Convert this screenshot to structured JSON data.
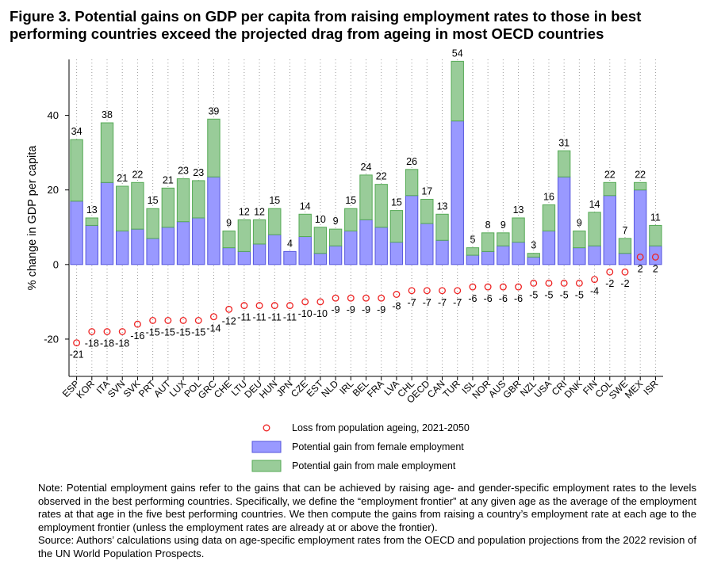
{
  "title": "Figure 3. Potential gains on GDP per capita from raising employment rates to those in best performing countries exceed the projected drag from ageing in most OECD countries",
  "note": "Note: Potential employment gains refer to the gains that can be achieved by raising age- and gender-specific employment rates to the levels observed in the best performing countries. Specifically, we define the “employment frontier” at any given age as the average of the employment rates at that age in the five best performing countries. We then compute the gains from raising a country’s employment rate at each age to the employment frontier (unless the employment rates are already at or above the frontier).",
  "source": "Source: Authors’ calculations using data on age-specific employment rates from the OECD and population projections from the 2022 revision of the UN World Population Prospects.",
  "colors": {
    "female": "#9999ff",
    "female_edge": "#5555dd",
    "male": "#99cc99",
    "male_edge": "#55aa55",
    "loss": "#ee2222"
  },
  "chart_data": {
    "type": "bar",
    "stacked": true,
    "ylabel": "% change in GDP per capita",
    "ylim": [
      -30,
      55
    ],
    "yticks": [
      -20,
      0,
      20,
      40
    ],
    "grid": "vertical dotted",
    "categories": [
      "ESP",
      "KOR",
      "ITA",
      "SVN",
      "SVK",
      "PRT",
      "AUT",
      "LUX",
      "POL",
      "GRC",
      "CHE",
      "LTU",
      "DEU",
      "HUN",
      "JPN",
      "CZE",
      "EST",
      "NLD",
      "IRL",
      "BEL",
      "FRA",
      "LVA",
      "CHL",
      "OECD",
      "CAN",
      "TUR",
      "ISL",
      "NOR",
      "AUS",
      "GBR",
      "NZL",
      "USA",
      "CRI",
      "DNK",
      "FIN",
      "COL",
      "SWE",
      "MEX",
      "ISR"
    ],
    "series": [
      {
        "name": "Potential gain from female employment",
        "kind": "bar",
        "values": [
          17,
          10.5,
          22,
          9,
          9.5,
          7,
          10,
          11.5,
          12.5,
          23.5,
          4.5,
          3.5,
          5.5,
          8,
          3.5,
          7.5,
          3,
          5,
          9,
          12,
          10,
          6,
          18.5,
          11,
          6.5,
          38.5,
          2.5,
          3.5,
          5,
          6,
          2,
          9,
          23.5,
          4.5,
          5,
          18.5,
          3,
          20,
          5
        ]
      },
      {
        "name": "Potential gain from male employment",
        "kind": "bar",
        "values": [
          16.5,
          2,
          16,
          12,
          12.5,
          8,
          10.5,
          11.5,
          10,
          15.5,
          4.5,
          8.5,
          6.5,
          7,
          0,
          6,
          7,
          4.5,
          6,
          12,
          11.5,
          8.5,
          7,
          6.5,
          7,
          16,
          2,
          5,
          3.5,
          6.5,
          1,
          7,
          7,
          4.5,
          9,
          3.5,
          4,
          2,
          5.5
        ]
      },
      {
        "name": "Loss from population ageing, 2021-2050",
        "kind": "marker",
        "values": [
          -21,
          -18,
          -18,
          -18,
          -16,
          -15,
          -15,
          -15,
          -15,
          -14,
          -12,
          -11,
          -11,
          -11,
          -11,
          -10,
          -10,
          -9,
          -9,
          -9,
          -9,
          -8,
          -7,
          -7,
          -7,
          -7,
          -6,
          -6,
          -6,
          -6,
          -5,
          -5,
          -5,
          -5,
          -4,
          -2,
          -2,
          2,
          2
        ]
      }
    ],
    "gain_labels": [
      "34",
      "13",
      "38",
      "21",
      "22",
      "15",
      "21",
      "23",
      "23",
      "39",
      "9",
      "12",
      "12",
      "15",
      "4",
      "14",
      "10",
      "9",
      "15",
      "24",
      "22",
      "15",
      "26",
      "17",
      "13",
      "54",
      "5",
      "8",
      "9",
      "13",
      "3",
      "16",
      "31",
      "9",
      "14",
      "22",
      "7",
      "22",
      "11"
    ],
    "loss_labels": [
      "-21",
      "-18",
      "-18",
      "-18",
      "-16",
      "-15",
      "-15",
      "-15",
      "-15",
      "-14",
      "-12",
      "-11",
      "-11",
      "-11",
      "-11",
      "-10",
      "-10",
      "-9",
      "-9",
      "-9",
      "-9",
      "-8",
      "-7",
      "-7",
      "-7",
      "-7",
      "-6",
      "-6",
      "-6",
      "-6",
      "-5",
      "-5",
      "-5",
      "-5",
      "-4",
      "-2",
      "-2",
      "2",
      "2"
    ],
    "legend": {
      "position": "bottom",
      "items": [
        {
          "label": "Loss from population ageing, 2021-2050",
          "symbol": "circle"
        },
        {
          "label": "Potential gain from female employment",
          "symbol": "female"
        },
        {
          "label": "Potential gain from male employment",
          "symbol": "male"
        }
      ]
    }
  }
}
